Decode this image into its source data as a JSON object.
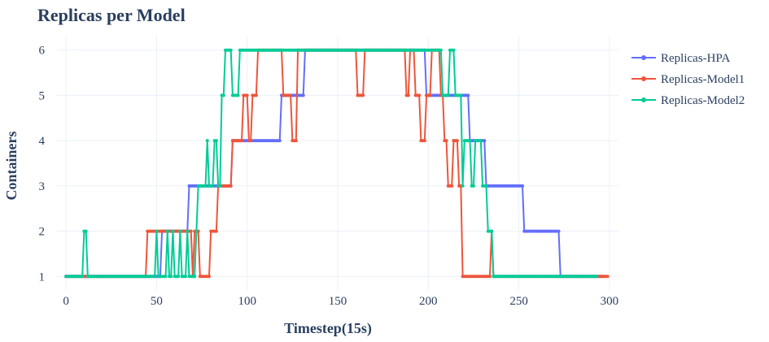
{
  "chart_data": {
    "type": "line",
    "title": "Replicas per Model",
    "xlabel": "Timestep(15s)",
    "ylabel": "Containers",
    "xlim": [
      -5,
      305
    ],
    "ylim": [
      0.7,
      6.3
    ],
    "xticks": [
      0,
      50,
      100,
      150,
      200,
      250,
      300
    ],
    "yticks": [
      1,
      2,
      3,
      4,
      5,
      6
    ],
    "grid": true,
    "legend_position": "right-top",
    "series": [
      {
        "name": "Replicas-HPA",
        "color": "#636efa",
        "segments": [
          [
            0,
            1
          ],
          [
            52,
            1
          ],
          [
            53,
            2
          ],
          [
            67,
            2
          ],
          [
            68,
            3
          ],
          [
            91,
            3
          ],
          [
            92,
            4
          ],
          [
            118,
            4
          ],
          [
            119,
            5
          ],
          [
            131,
            5
          ],
          [
            132,
            6
          ],
          [
            198,
            6
          ],
          [
            199,
            5
          ],
          [
            222,
            5
          ],
          [
            223,
            4
          ],
          [
            231,
            4
          ],
          [
            232,
            3
          ],
          [
            252,
            3
          ],
          [
            253,
            2
          ],
          [
            272,
            2
          ],
          [
            273,
            1
          ],
          [
            297,
            1
          ]
        ]
      },
      {
        "name": "Replicas-Model1",
        "color": "#ef553b",
        "segments": [
          [
            0,
            1
          ],
          [
            44,
            1
          ],
          [
            45,
            2
          ],
          [
            69,
            2
          ],
          [
            70,
            1
          ],
          [
            71,
            2
          ],
          [
            73,
            2
          ],
          [
            74,
            1
          ],
          [
            77,
            1
          ],
          [
            79,
            1
          ],
          [
            80,
            2
          ],
          [
            83,
            2
          ],
          [
            84,
            3
          ],
          [
            91,
            3
          ],
          [
            92,
            4
          ],
          [
            97,
            4
          ],
          [
            98,
            5
          ],
          [
            100,
            5
          ],
          [
            101,
            4
          ],
          [
            102,
            4
          ],
          [
            103,
            5
          ],
          [
            105,
            5
          ],
          [
            106,
            6
          ],
          [
            119,
            6
          ],
          [
            120,
            5
          ],
          [
            124,
            5
          ],
          [
            125,
            4
          ],
          [
            127,
            4
          ],
          [
            128,
            6
          ],
          [
            160,
            6
          ],
          [
            161,
            5
          ],
          [
            164,
            5
          ],
          [
            165,
            6
          ],
          [
            187,
            6
          ],
          [
            188,
            5
          ],
          [
            189,
            5
          ],
          [
            190,
            6
          ],
          [
            192,
            6
          ],
          [
            193,
            5
          ],
          [
            195,
            5
          ],
          [
            196,
            4
          ],
          [
            198,
            4
          ],
          [
            199,
            5
          ],
          [
            201,
            5
          ],
          [
            202,
            6
          ],
          [
            206,
            6
          ],
          [
            207,
            5
          ],
          [
            208,
            5
          ],
          [
            209,
            4
          ],
          [
            210,
            4
          ],
          [
            211,
            3
          ],
          [
            213,
            3
          ],
          [
            214,
            4
          ],
          [
            216,
            4
          ],
          [
            217,
            3
          ],
          [
            218,
            3
          ],
          [
            219,
            1
          ],
          [
            234,
            1
          ],
          [
            235,
            2
          ],
          [
            236,
            1
          ],
          [
            299,
            1
          ]
        ]
      },
      {
        "name": "Replicas-Model2",
        "color": "#00cc96",
        "segments": [
          [
            0,
            1
          ],
          [
            9,
            1
          ],
          [
            10,
            2
          ],
          [
            11,
            2
          ],
          [
            12,
            1
          ],
          [
            49,
            1
          ],
          [
            50,
            2
          ],
          [
            51,
            1
          ],
          [
            55,
            1
          ],
          [
            56,
            2
          ],
          [
            57,
            1
          ],
          [
            58,
            1
          ],
          [
            59,
            2
          ],
          [
            60,
            1
          ],
          [
            62,
            1
          ],
          [
            63,
            2
          ],
          [
            64,
            1
          ],
          [
            66,
            1
          ],
          [
            67,
            2
          ],
          [
            68,
            1
          ],
          [
            71,
            1
          ],
          [
            72,
            2
          ],
          [
            73,
            3
          ],
          [
            77,
            3
          ],
          [
            78,
            4
          ],
          [
            79,
            3
          ],
          [
            81,
            3
          ],
          [
            82,
            4
          ],
          [
            83,
            4
          ],
          [
            84,
            3
          ],
          [
            85,
            3
          ],
          [
            86,
            5
          ],
          [
            87,
            5
          ],
          [
            88,
            6
          ],
          [
            91,
            6
          ],
          [
            92,
            5
          ],
          [
            95,
            5
          ],
          [
            96,
            6
          ],
          [
            207,
            6
          ],
          [
            208,
            5
          ],
          [
            211,
            5
          ],
          [
            212,
            6
          ],
          [
            214,
            6
          ],
          [
            215,
            5
          ],
          [
            218,
            5
          ],
          [
            219,
            3
          ],
          [
            220,
            4
          ],
          [
            223,
            4
          ],
          [
            224,
            3
          ],
          [
            225,
            3
          ],
          [
            226,
            4
          ],
          [
            229,
            4
          ],
          [
            230,
            3
          ],
          [
            232,
            3
          ],
          [
            233,
            2
          ],
          [
            235,
            2
          ],
          [
            236,
            1
          ],
          [
            293,
            1
          ]
        ]
      }
    ]
  }
}
